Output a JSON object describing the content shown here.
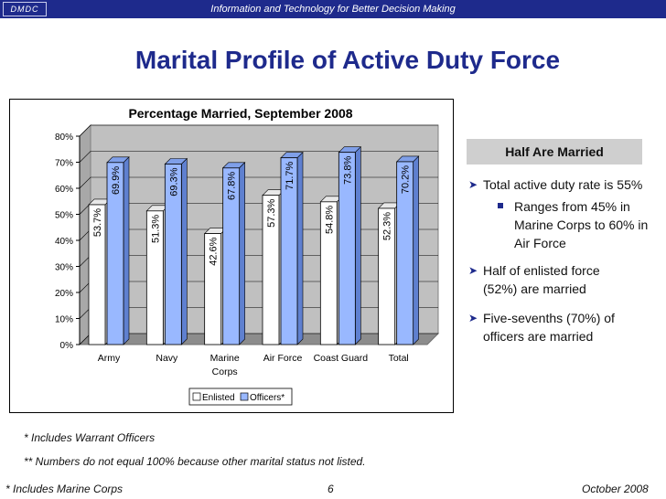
{
  "header": {
    "logo": "DMDC",
    "tagline": "Information and Technology for Better Decision Making"
  },
  "title": "Marital Profile of Active Duty Force",
  "chart_data": {
    "type": "bar",
    "title": "Percentage Married, September 2008",
    "categories": [
      "Army",
      "Navy",
      "Marine Corps",
      "Air Force",
      "Coast Guard",
      "Total"
    ],
    "category_lines": [
      [
        "Army"
      ],
      [
        "Navy"
      ],
      [
        "Marine",
        "Corps"
      ],
      [
        "Air Force"
      ],
      [
        "Coast Guard"
      ],
      [
        "Total"
      ]
    ],
    "series": [
      {
        "name": "Enlisted",
        "values": [
          53.7,
          51.3,
          42.6,
          57.3,
          54.8,
          52.3
        ],
        "labels": [
          "53.7%",
          "51.3%",
          "42.6%",
          "57.3%",
          "54.8%",
          "52.3%"
        ],
        "color": "#ffffff"
      },
      {
        "name": "Officers*",
        "values": [
          69.9,
          69.3,
          67.8,
          71.7,
          73.8,
          70.2
        ],
        "labels": [
          "69.9%",
          "69.3%",
          "67.8%",
          "71.7%",
          "73.8%",
          "70.2%"
        ],
        "color": "#99b8ff"
      }
    ],
    "ylim": [
      0,
      80
    ],
    "yticks": [
      0,
      10,
      20,
      30,
      40,
      50,
      60,
      70,
      80
    ],
    "ytick_labels": [
      "0%",
      "10%",
      "20%",
      "30%",
      "40%",
      "50%",
      "60%",
      "70%",
      "80%"
    ],
    "grid": true,
    "legend": "bottom"
  },
  "panel": {
    "heading": "Half Are Married",
    "b1": "Total active duty rate is 55%",
    "b1_sub": "Ranges from 45% in Marine Corps to 60% in Air Force",
    "b2": "Half of enlisted force (52%) are married",
    "b3": "Five-sevenths (70%) of officers are married"
  },
  "footnotes": {
    "f1": "* Includes Warrant Officers",
    "f2": "** Numbers do not equal 100% because other marital status not listed."
  },
  "footer": {
    "left": "* Includes Marine Corps",
    "page": "6",
    "date": "October 2008"
  }
}
